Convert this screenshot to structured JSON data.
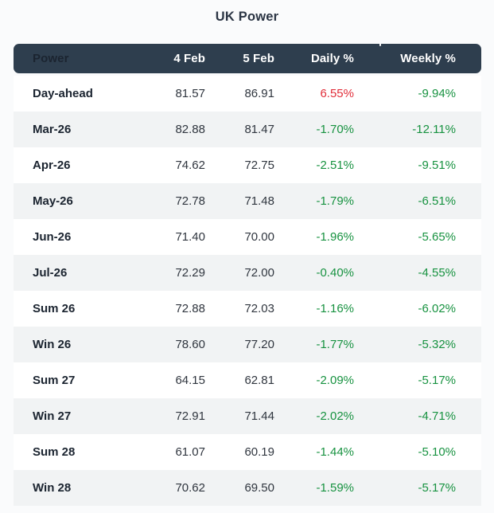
{
  "title": "UK Power",
  "colors": {
    "page_bg": "#fafbfc",
    "header_bg": "#2e3e4e",
    "header_text": "#ffffff",
    "row_bg": "#ffffff",
    "row_alt_bg": "#f1f3f4",
    "label_text": "#1b2430",
    "number_text": "#30363f",
    "positive_red": "#e12d39",
    "negative_green": "#179240",
    "title_text": "#2b3544"
  },
  "chart_data": {
    "type": "table",
    "title": "UK Power",
    "columns": [
      "Power",
      "4 Feb",
      "5 Feb",
      "Daily %",
      "Weekly %"
    ],
    "rows": [
      [
        "Day-ahead",
        "81.57",
        "86.91",
        "6.55%",
        "-9.94%"
      ],
      [
        "Mar-26",
        "82.88",
        "81.47",
        "-1.70%",
        "-12.11%"
      ],
      [
        "Apr-26",
        "74.62",
        "72.75",
        "-2.51%",
        "-9.51%"
      ],
      [
        "May-26",
        "72.78",
        "71.48",
        "-1.79%",
        "-6.51%"
      ],
      [
        "Jun-26",
        "71.40",
        "70.00",
        "-1.96%",
        "-5.65%"
      ],
      [
        "Jul-26",
        "72.29",
        "72.00",
        "-0.40%",
        "-4.55%"
      ],
      [
        "Sum 26",
        "72.88",
        "72.03",
        "-1.16%",
        "-6.02%"
      ],
      [
        "Win 26",
        "78.60",
        "77.20",
        "-1.77%",
        "-5.32%"
      ],
      [
        "Sum 27",
        "64.15",
        "62.81",
        "-2.09%",
        "-5.17%"
      ],
      [
        "Win 27",
        "72.91",
        "71.44",
        "-2.02%",
        "-4.71%"
      ],
      [
        "Sum 28",
        "61.07",
        "60.19",
        "-1.44%",
        "-5.10%"
      ],
      [
        "Win 28",
        "70.62",
        "69.50",
        "-1.59%",
        "-5.17%"
      ]
    ],
    "layout_hints": {
      "percent_color_rule": "values starting with '-' render green, positive values render red",
      "row_striping": "alternating, starting with white",
      "numeric_alignment": "right"
    }
  }
}
